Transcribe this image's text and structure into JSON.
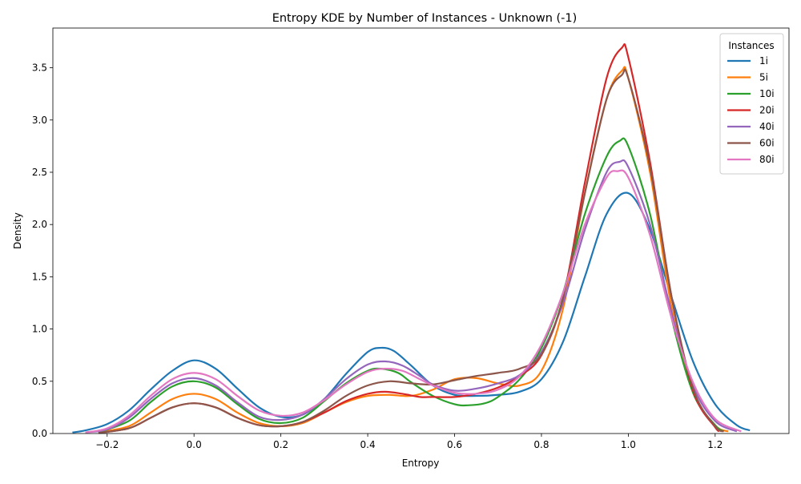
{
  "chart_data": {
    "type": "line",
    "title": "Entropy KDE by Number of Instances - Unknown (-1)",
    "xlabel": "Entropy",
    "ylabel": "Density",
    "xlim": [
      -0.325,
      1.37
    ],
    "ylim": [
      0,
      3.88
    ],
    "xticks": [
      -0.2,
      0.0,
      0.2,
      0.4,
      0.6,
      0.8,
      1.0,
      1.2
    ],
    "xtick_labels": [
      "−0.2",
      "0.0",
      "0.2",
      "0.4",
      "0.6",
      "0.8",
      "1.0",
      "1.2"
    ],
    "yticks": [
      0.0,
      0.5,
      1.0,
      1.5,
      2.0,
      2.5,
      3.0,
      3.5
    ],
    "ytick_labels": [
      "0.0",
      "0.5",
      "1.0",
      "1.5",
      "2.0",
      "2.5",
      "3.0",
      "3.5"
    ],
    "grid": false,
    "legend": {
      "title": "Instances",
      "placement": "top-right"
    },
    "series": [
      {
        "name": "1i",
        "color": "#1f77b4",
        "x": [
          -0.28,
          -0.25,
          -0.2,
          -0.15,
          -0.1,
          -0.05,
          0.0,
          0.05,
          0.1,
          0.15,
          0.2,
          0.25,
          0.3,
          0.35,
          0.4,
          0.43,
          0.46,
          0.5,
          0.55,
          0.6,
          0.65,
          0.7,
          0.75,
          0.8,
          0.85,
          0.9,
          0.95,
          1.0,
          1.05,
          1.1,
          1.15,
          1.2,
          1.25,
          1.28
        ],
        "y": [
          0.01,
          0.03,
          0.09,
          0.22,
          0.42,
          0.6,
          0.7,
          0.62,
          0.43,
          0.25,
          0.16,
          0.18,
          0.33,
          0.57,
          0.78,
          0.82,
          0.79,
          0.65,
          0.46,
          0.37,
          0.36,
          0.37,
          0.4,
          0.52,
          0.88,
          1.5,
          2.1,
          2.3,
          1.95,
          1.3,
          0.68,
          0.28,
          0.08,
          0.03
        ]
      },
      {
        "name": "5i",
        "color": "#ff7f0e",
        "x": [
          -0.22,
          -0.15,
          -0.1,
          -0.05,
          0.0,
          0.05,
          0.1,
          0.15,
          0.2,
          0.25,
          0.3,
          0.35,
          0.4,
          0.45,
          0.5,
          0.55,
          0.6,
          0.65,
          0.7,
          0.75,
          0.8,
          0.85,
          0.9,
          0.95,
          0.985,
          1.0,
          1.05,
          1.1,
          1.15,
          1.2,
          1.23
        ],
        "y": [
          0.01,
          0.07,
          0.2,
          0.33,
          0.38,
          0.33,
          0.2,
          0.1,
          0.07,
          0.1,
          0.2,
          0.3,
          0.36,
          0.37,
          0.36,
          0.42,
          0.52,
          0.53,
          0.48,
          0.46,
          0.6,
          1.2,
          2.3,
          3.2,
          3.47,
          3.4,
          2.5,
          1.2,
          0.4,
          0.08,
          0.02
        ]
      },
      {
        "name": "10i",
        "color": "#2ca02c",
        "x": [
          -0.22,
          -0.15,
          -0.1,
          -0.05,
          0.0,
          0.05,
          0.1,
          0.15,
          0.2,
          0.25,
          0.3,
          0.35,
          0.4,
          0.43,
          0.47,
          0.5,
          0.55,
          0.6,
          0.63,
          0.67,
          0.7,
          0.75,
          0.8,
          0.85,
          0.9,
          0.95,
          0.98,
          1.0,
          1.05,
          1.1,
          1.15,
          1.2,
          1.22
        ],
        "y": [
          0.01,
          0.12,
          0.3,
          0.45,
          0.5,
          0.44,
          0.28,
          0.14,
          0.1,
          0.15,
          0.31,
          0.48,
          0.6,
          0.62,
          0.58,
          0.49,
          0.36,
          0.28,
          0.27,
          0.29,
          0.35,
          0.52,
          0.82,
          1.35,
          2.1,
          2.65,
          2.8,
          2.75,
          2.1,
          1.1,
          0.38,
          0.08,
          0.02
        ]
      },
      {
        "name": "20i",
        "color": "#d62728",
        "x": [
          -0.22,
          -0.15,
          -0.1,
          -0.05,
          0.0,
          0.05,
          0.1,
          0.15,
          0.2,
          0.25,
          0.3,
          0.35,
          0.4,
          0.44,
          0.48,
          0.52,
          0.55,
          0.6,
          0.65,
          0.7,
          0.75,
          0.8,
          0.85,
          0.9,
          0.95,
          0.985,
          1.0,
          1.05,
          1.1,
          1.15,
          1.2,
          1.21
        ],
        "y": [
          0.005,
          0.05,
          0.15,
          0.25,
          0.29,
          0.25,
          0.15,
          0.08,
          0.07,
          0.11,
          0.2,
          0.31,
          0.38,
          0.4,
          0.38,
          0.35,
          0.35,
          0.35,
          0.38,
          0.44,
          0.55,
          0.75,
          1.3,
          2.4,
          3.4,
          3.69,
          3.6,
          2.6,
          1.3,
          0.4,
          0.06,
          0.03
        ]
      },
      {
        "name": "40i",
        "color": "#9467bd",
        "x": [
          -0.25,
          -0.2,
          -0.15,
          -0.1,
          -0.05,
          0.0,
          0.05,
          0.1,
          0.15,
          0.2,
          0.25,
          0.3,
          0.35,
          0.4,
          0.44,
          0.48,
          0.52,
          0.55,
          0.6,
          0.65,
          0.7,
          0.75,
          0.8,
          0.85,
          0.9,
          0.95,
          0.98,
          1.0,
          1.05,
          1.1,
          1.15,
          1.2,
          1.25
        ],
        "y": [
          0.01,
          0.04,
          0.15,
          0.33,
          0.48,
          0.53,
          0.46,
          0.3,
          0.16,
          0.13,
          0.18,
          0.33,
          0.52,
          0.66,
          0.69,
          0.65,
          0.55,
          0.47,
          0.41,
          0.43,
          0.48,
          0.56,
          0.78,
          1.25,
          1.95,
          2.5,
          2.6,
          2.55,
          2.0,
          1.15,
          0.45,
          0.12,
          0.02
        ]
      },
      {
        "name": "60i",
        "color": "#8c564b",
        "x": [
          -0.22,
          -0.15,
          -0.1,
          -0.05,
          0.0,
          0.05,
          0.1,
          0.15,
          0.2,
          0.25,
          0.3,
          0.35,
          0.4,
          0.45,
          0.5,
          0.55,
          0.6,
          0.65,
          0.7,
          0.75,
          0.8,
          0.85,
          0.9,
          0.95,
          0.985,
          1.0,
          1.05,
          1.1,
          1.15,
          1.2,
          1.22
        ],
        "y": [
          0.005,
          0.05,
          0.15,
          0.25,
          0.29,
          0.25,
          0.15,
          0.08,
          0.07,
          0.11,
          0.22,
          0.36,
          0.46,
          0.5,
          0.48,
          0.47,
          0.51,
          0.55,
          0.58,
          0.62,
          0.76,
          1.3,
          2.3,
          3.2,
          3.43,
          3.4,
          2.55,
          1.3,
          0.42,
          0.07,
          0.02
        ]
      },
      {
        "name": "80i",
        "color": "#e377c2",
        "x": [
          -0.25,
          -0.2,
          -0.15,
          -0.1,
          -0.05,
          0.0,
          0.05,
          0.1,
          0.15,
          0.2,
          0.25,
          0.3,
          0.35,
          0.4,
          0.44,
          0.48,
          0.52,
          0.55,
          0.6,
          0.65,
          0.7,
          0.75,
          0.8,
          0.85,
          0.9,
          0.95,
          0.975,
          1.0,
          1.05,
          1.1,
          1.15,
          1.2,
          1.26
        ],
        "y": [
          0.01,
          0.05,
          0.17,
          0.36,
          0.52,
          0.58,
          0.52,
          0.36,
          0.22,
          0.17,
          0.2,
          0.32,
          0.47,
          0.59,
          0.62,
          0.6,
          0.52,
          0.46,
          0.39,
          0.38,
          0.42,
          0.55,
          0.85,
          1.35,
          2.0,
          2.45,
          2.51,
          2.45,
          1.9,
          1.1,
          0.48,
          0.14,
          0.02
        ]
      }
    ]
  }
}
